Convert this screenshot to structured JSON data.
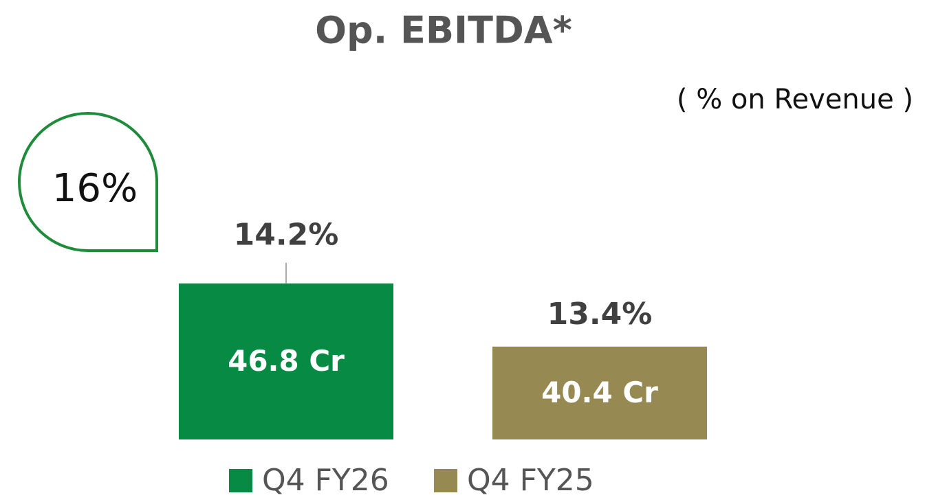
{
  "chart_data": {
    "type": "bar",
    "title": "Op. EBITDA*",
    "subtitle": "( % on Revenue )",
    "annotation": "16%",
    "categories": [
      "Q4 FY26",
      "Q4 FY25"
    ],
    "values": [
      46.8,
      40.4
    ],
    "value_labels": [
      "46.8 Cr",
      "40.4 Cr"
    ],
    "margins": [
      14.2,
      13.4
    ],
    "margin_labels": [
      "14.2%",
      "13.4%"
    ],
    "colors": [
      "#078a44",
      "#968a52"
    ],
    "ylim": [
      31,
      57
    ]
  }
}
